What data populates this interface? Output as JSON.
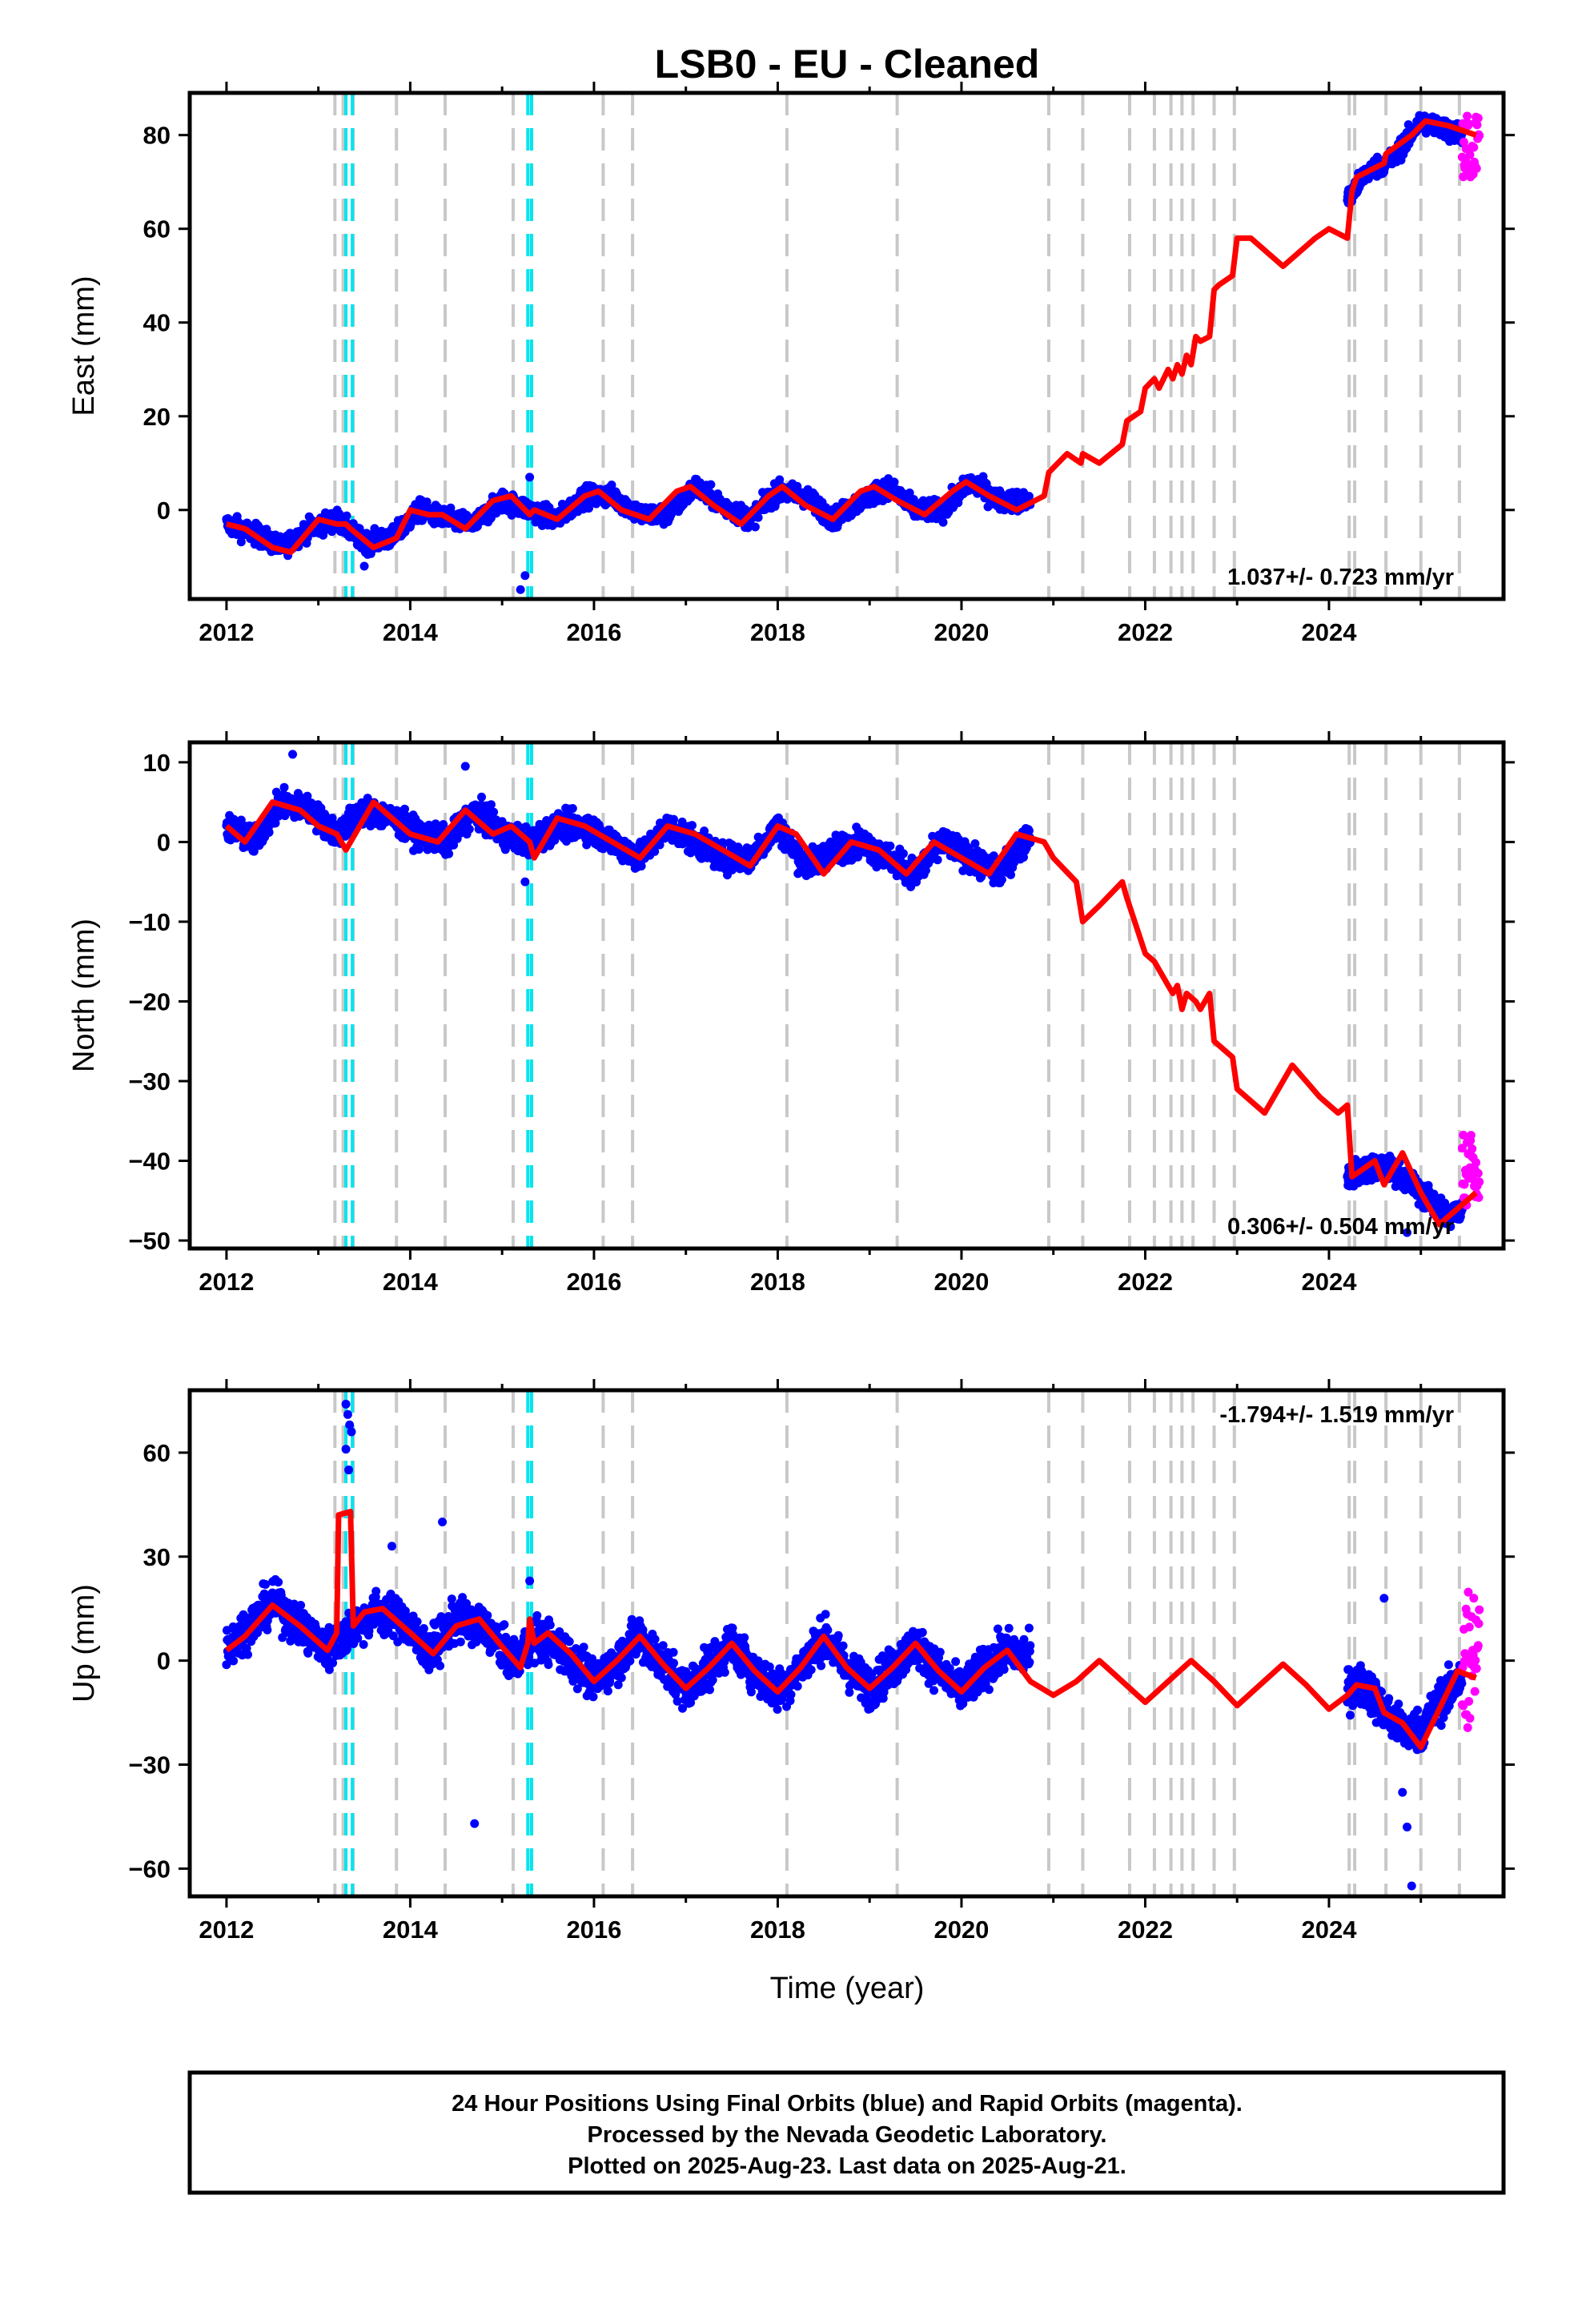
{
  "title": "LSB0  - EU - Cleaned",
  "xlabel": "Time (year)",
  "footer": {
    "line1": "24 Hour Positions Using Final Orbits (blue) and Rapid Orbits (magenta).",
    "line2": "Processed by the Nevada Geodetic Laboratory.",
    "line3": "Plotted on 2025-Aug-23. Last data on 2025-Aug-21."
  },
  "colors": {
    "final_orbits": "#0000ff",
    "rapid_orbits": "#ff00ff",
    "model": "#ff0000",
    "equipment_change": "#c8c8c8",
    "earthquake": "#00e5ee"
  },
  "chart_data": [
    {
      "type": "scatter",
      "component": "East",
      "ylabel": "East (mm)",
      "rate": "1.037+/- 0.723 mm/yr",
      "xlim": [
        2011.6,
        2025.9
      ],
      "ylim": [
        -19,
        89
      ],
      "xticks": [
        2012,
        2014,
        2016,
        2018,
        2020,
        2022,
        2024
      ],
      "yticks": [
        0,
        20,
        40,
        60,
        80
      ],
      "model": {
        "series": "Model fit",
        "x": [
          2012.0,
          2012.2,
          2012.5,
          2012.7,
          2013.0,
          2013.2,
          2013.3,
          2013.35,
          2013.6,
          2013.85,
          2014.0,
          2014.2,
          2014.35,
          2014.6,
          2014.9,
          2015.1,
          2015.2,
          2015.3,
          2015.35,
          2015.6,
          2015.9,
          2016.05,
          2016.3,
          2016.6,
          2016.9,
          2017.05,
          2017.3,
          2017.6,
          2017.9,
          2018.05,
          2018.3,
          2018.6,
          2018.9,
          2019.05,
          2019.3,
          2019.6,
          2019.9,
          2020.05,
          2020.3,
          2020.6,
          2020.9,
          2020.95,
          2021.15,
          2021.3,
          2021.32,
          2021.5,
          2021.75,
          2021.8,
          2021.95,
          2022.0,
          2022.1,
          2022.15,
          2022.25,
          2022.3,
          2022.35,
          2022.4,
          2022.45,
          2022.5,
          2022.55,
          2022.6,
          2022.7,
          2022.75,
          2022.8,
          2022.95,
          2023.0,
          2023.15,
          2023.5,
          2023.85,
          2024.0,
          2024.2,
          2024.25,
          2024.3,
          2024.6,
          2024.62,
          2024.9,
          2025.05,
          2025.3,
          2025.6
        ],
        "y": [
          -3,
          -4,
          -8,
          -9,
          -2,
          -3,
          -3,
          -4,
          -8,
          -6,
          0,
          -1,
          -1,
          -4,
          2,
          3,
          1,
          -1,
          0,
          -2,
          3,
          4,
          0,
          -2,
          4,
          5,
          1,
          -3,
          3,
          5,
          1,
          -2,
          4,
          5,
          2,
          -1,
          4,
          6,
          3,
          0,
          3,
          8,
          12,
          10,
          12,
          10,
          14,
          19,
          21,
          26,
          28,
          26,
          30,
          28,
          31,
          29,
          33,
          31,
          37,
          36,
          37,
          47,
          48,
          50,
          58,
          58,
          52,
          58,
          60,
          58,
          68,
          71,
          74,
          76,
          80,
          83,
          82,
          80
        ]
      },
      "final_trend": {
        "x": [
          2012.0,
          2012.3,
          2012.6,
          2012.9,
          2013.2,
          2013.5,
          2013.8,
          2014.1,
          2014.4,
          2014.7,
          2015.0,
          2015.3,
          2015.6,
          2015.9,
          2016.2,
          2016.5,
          2016.8,
          2017.1,
          2017.4,
          2017.7,
          2018.0,
          2018.3,
          2018.6,
          2018.9,
          2019.2,
          2019.5,
          2019.8,
          2020.1,
          2020.4,
          2020.75
        ],
        "y": [
          -3,
          -5,
          -8,
          -4,
          -2,
          -7,
          -6,
          0,
          -2,
          -3,
          2,
          0,
          -2,
          3,
          3,
          -1,
          -1,
          5,
          1,
          -2,
          4,
          3,
          -2,
          2,
          5,
          0,
          0,
          6,
          2,
          2
        ],
        "spread": 2.5
      },
      "final_trend_2": {
        "x": [
          2024.2,
          2024.4,
          2024.7,
          2025.0,
          2025.3,
          2025.45
        ],
        "y": [
          66,
          72,
          75,
          83,
          81,
          80
        ],
        "spread": 2.5
      },
      "rapid": {
        "x0": 2025.45,
        "x1": 2025.64,
        "ymin": 71,
        "ymax": 85
      },
      "outliers": {
        "x": [
          2015.2,
          2015.25,
          2015.3,
          2013.5
        ],
        "y": [
          -17,
          -14,
          7,
          -12
        ]
      }
    },
    {
      "type": "scatter",
      "component": "North",
      "ylabel": "North (mm)",
      "rate": "0.306+/- 0.504 mm/yr",
      "xlim": [
        2011.6,
        2025.9
      ],
      "ylim": [
        -51,
        12.5
      ],
      "xticks": [
        2012,
        2014,
        2016,
        2018,
        2020,
        2022,
        2024
      ],
      "yticks": [
        10,
        0,
        -10,
        -20,
        -30,
        -40,
        -50
      ],
      "model": {
        "series": "Model fit",
        "x": [
          2012.0,
          2012.2,
          2012.5,
          2012.8,
          2013.0,
          2013.2,
          2013.3,
          2013.6,
          2013.8,
          2014.0,
          2014.3,
          2014.6,
          2014.9,
          2015.1,
          2015.3,
          2015.35,
          2015.6,
          2015.9,
          2016.2,
          2016.5,
          2016.8,
          2017.1,
          2017.4,
          2017.7,
          2018.0,
          2018.2,
          2018.5,
          2018.8,
          2019.1,
          2019.4,
          2019.7,
          2020.0,
          2020.3,
          2020.6,
          2020.9,
          2020.95,
          2021.0,
          2021.25,
          2021.32,
          2021.5,
          2021.75,
          2021.8,
          2022.0,
          2022.1,
          2022.25,
          2022.3,
          2022.35,
          2022.4,
          2022.45,
          2022.55,
          2022.6,
          2022.7,
          2022.75,
          2022.95,
          2023.0,
          2023.3,
          2023.6,
          2023.9,
          2024.1,
          2024.2,
          2024.25,
          2024.5,
          2024.6,
          2024.8,
          2025.0,
          2025.2,
          2025.4,
          2025.6
        ],
        "y": [
          2,
          0,
          5,
          4,
          2,
          1,
          -1,
          5,
          3,
          1,
          0,
          4,
          1,
          2,
          0,
          -2,
          3,
          2,
          0,
          -2,
          2,
          1,
          -1,
          -3,
          2,
          1,
          -4,
          0,
          -1,
          -4,
          0,
          -2,
          -4,
          1,
          0,
          -1,
          -2,
          -5,
          -10,
          -8,
          -5,
          -7,
          -14,
          -15,
          -18,
          -19,
          -18,
          -21,
          -19,
          -20,
          -21,
          -19,
          -25,
          -27,
          -31,
          -34,
          -28,
          -32,
          -34,
          -33,
          -42,
          -40,
          -43,
          -39,
          -44,
          -48,
          -46,
          -44
        ]
      },
      "final_trend": {
        "x": [
          2012.0,
          2012.3,
          2012.6,
          2012.9,
          2013.2,
          2013.5,
          2013.8,
          2014.1,
          2014.4,
          2014.7,
          2015.0,
          2015.3,
          2015.6,
          2015.9,
          2016.2,
          2016.5,
          2016.8,
          2017.1,
          2017.4,
          2017.7,
          2018.0,
          2018.3,
          2018.6,
          2018.9,
          2019.2,
          2019.5,
          2019.8,
          2020.1,
          2020.4,
          2020.75
        ],
        "y": [
          2,
          0,
          5,
          4,
          1,
          4,
          3,
          1,
          0,
          4,
          1,
          0,
          2,
          2,
          0,
          -2,
          2,
          0,
          -2,
          -2,
          2,
          -3,
          -1,
          0,
          -2,
          -4,
          0,
          -2,
          -4,
          1
        ],
        "spread": 2.0
      },
      "final_trend_2": {
        "x": [
          2024.2,
          2024.4,
          2024.7,
          2025.0,
          2025.3,
          2025.45
        ],
        "y": [
          -42,
          -41,
          -41,
          -44,
          -47,
          -46
        ],
        "spread": 1.8
      },
      "rapid": {
        "x0": 2025.45,
        "x1": 2025.64,
        "ymin": -46,
        "ymax": -36
      },
      "outliers": {
        "x": [
          2012.72,
          2014.6,
          2015.25,
          2024.85
        ],
        "y": [
          11,
          9.5,
          -5,
          -49
        ]
      }
    },
    {
      "type": "scatter",
      "component": "Up",
      "ylabel": "Up (mm)",
      "rate": "-1.794+/- 1.519 mm/yr",
      "xlim": [
        2011.6,
        2025.9
      ],
      "ylim": [
        -68,
        78
      ],
      "xticks": [
        2012,
        2014,
        2016,
        2018,
        2020,
        2022,
        2024
      ],
      "yticks": [
        60,
        30,
        0,
        -30,
        -60
      ],
      "model": {
        "series": "Model fit",
        "x": [
          2012.0,
          2012.2,
          2012.5,
          2012.8,
          2013.1,
          2013.2,
          2013.22,
          2013.35,
          2013.38,
          2013.5,
          2013.7,
          2014.0,
          2014.25,
          2014.5,
          2014.75,
          2015.0,
          2015.2,
          2015.28,
          2015.3,
          2015.35,
          2015.5,
          2015.75,
          2016.0,
          2016.25,
          2016.5,
          2016.75,
          2017.0,
          2017.25,
          2017.5,
          2017.75,
          2018.0,
          2018.25,
          2018.5,
          2018.75,
          2019.0,
          2019.25,
          2019.5,
          2019.75,
          2020.0,
          2020.25,
          2020.5,
          2020.75,
          2021.0,
          2021.25,
          2021.5,
          2021.75,
          2022.0,
          2022.25,
          2022.5,
          2022.75,
          2023.0,
          2023.25,
          2023.5,
          2023.75,
          2024.0,
          2024.2,
          2024.3,
          2024.5,
          2024.6,
          2024.8,
          2025.0,
          2025.2,
          2025.4,
          2025.6
        ],
        "y": [
          3,
          7,
          16,
          10,
          3,
          8,
          42,
          43,
          10,
          14,
          15,
          8,
          2,
          10,
          12,
          4,
          -2,
          5,
          12,
          5,
          8,
          2,
          -6,
          0,
          7,
          -1,
          -8,
          -2,
          5,
          -3,
          -9,
          -2,
          7,
          -2,
          -8,
          -2,
          5,
          -3,
          -9,
          -2,
          3,
          -6,
          -10,
          -6,
          0,
          -6,
          -12,
          -6,
          0,
          -6,
          -13,
          -7,
          -1,
          -7,
          -14,
          -10,
          -7,
          -8,
          -15,
          -18,
          -25,
          -14,
          -3,
          -5
        ]
      },
      "final_trend": {
        "x": [
          2012.0,
          2012.25,
          2012.5,
          2012.8,
          2013.1,
          2013.4,
          2013.6,
          2013.9,
          2014.2,
          2014.5,
          2014.8,
          2015.1,
          2015.4,
          2015.7,
          2016.0,
          2016.25,
          2016.5,
          2016.75,
          2017.0,
          2017.25,
          2017.5,
          2017.75,
          2018.0,
          2018.25,
          2018.5,
          2018.75,
          2019.0,
          2019.25,
          2019.5,
          2019.75,
          2020.0,
          2020.25,
          2020.5,
          2020.75
        ],
        "y": [
          4,
          10,
          17,
          10,
          3,
          10,
          14,
          12,
          2,
          12,
          10,
          0,
          7,
          2,
          -6,
          0,
          7,
          -1,
          -8,
          -2,
          5,
          -3,
          -9,
          -2,
          7,
          -2,
          -8,
          -2,
          5,
          -3,
          -9,
          -2,
          3,
          1
        ],
        "spread": 7
      },
      "final_trend_2": {
        "x": [
          2024.2,
          2024.4,
          2024.6,
          2024.8,
          2025.0,
          2025.2,
          2025.45
        ],
        "y": [
          -8,
          -7,
          -15,
          -20,
          -20,
          -12,
          -5
        ],
        "spread": 7
      },
      "rapid": {
        "x0": 2025.45,
        "x1": 2025.64,
        "ymin": -22,
        "ymax": 22
      },
      "outliers": {
        "x": [
          2013.3,
          2013.32,
          2013.34,
          2013.36,
          2013.3,
          2013.33,
          2014.35,
          2013.8,
          2014.7,
          2024.85,
          2024.9,
          2024.6,
          2024.8,
          2015.3
        ],
        "y": [
          74,
          71,
          68,
          66,
          61,
          55,
          40,
          33,
          -47,
          -48,
          -65,
          18,
          -38,
          23
        ]
      }
    }
  ],
  "equipment_changes": [
    2013.18,
    2013.27,
    2013.38,
    2013.85,
    2014.38,
    2015.12,
    2015.32,
    2016.1,
    2016.42,
    2018.1,
    2019.3,
    2020.95,
    2021.32,
    2021.83,
    2022.1,
    2022.28,
    2022.4,
    2022.52,
    2022.75,
    2022.97,
    2024.22,
    2024.28,
    2024.62,
    2025.0,
    2025.42
  ],
  "earthquakes": [
    2013.3,
    2013.37,
    2015.28,
    2015.32
  ]
}
